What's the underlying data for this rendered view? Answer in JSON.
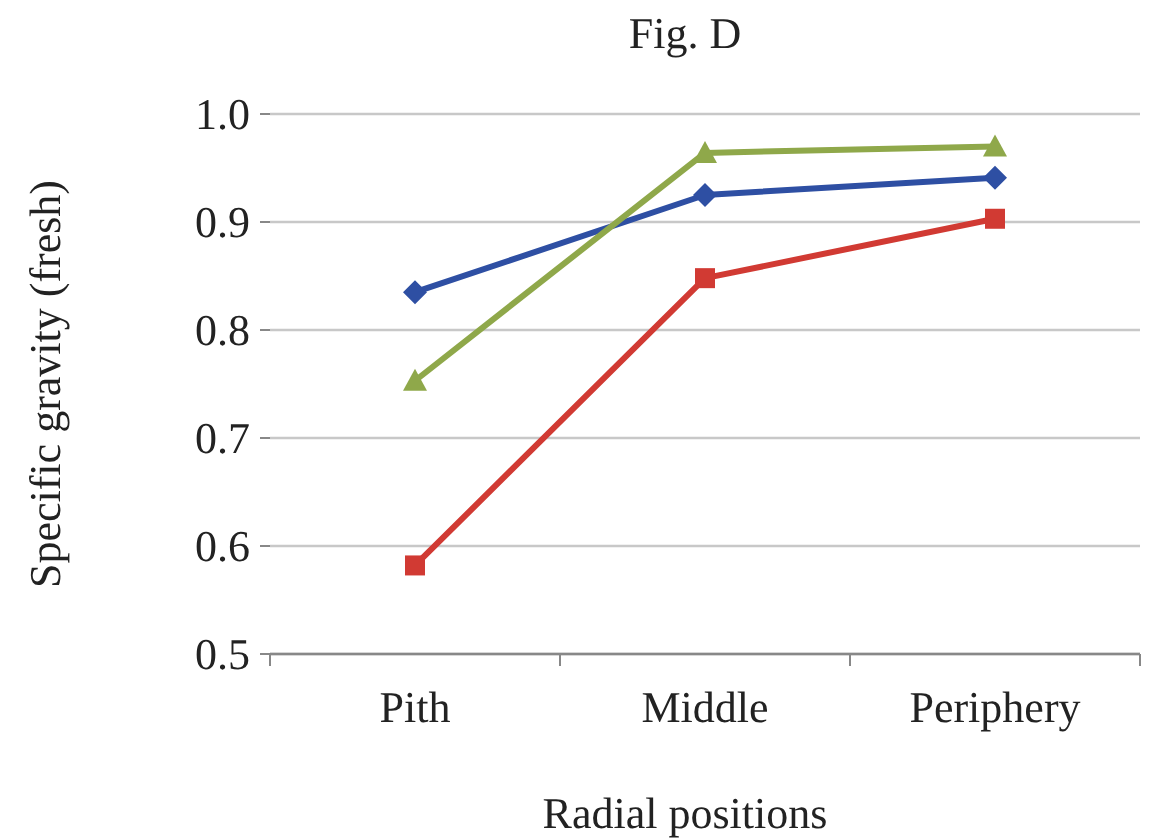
{
  "chart_data": {
    "type": "line",
    "title": "Fig. D",
    "xlabel": "Radial positions",
    "ylabel": "Specific gravity (fresh)",
    "categories": [
      "Pith",
      "Middle",
      "Periphery"
    ],
    "series": [
      {
        "color": "#2e4fa3",
        "marker": "diamond",
        "values": [
          0.835,
          0.925,
          0.941
        ]
      },
      {
        "color": "#d13a33",
        "marker": "square",
        "values": [
          0.582,
          0.848,
          0.903
        ]
      },
      {
        "color": "#8fa84a",
        "marker": "triangle",
        "values": [
          0.753,
          0.964,
          0.97
        ]
      }
    ],
    "ylim": [
      0.5,
      1.0
    ],
    "yticks": [
      {
        "value": 0.5,
        "label": "0.5"
      },
      {
        "value": 0.6,
        "label": "0.6"
      },
      {
        "value": 0.7,
        "label": "0.7"
      },
      {
        "value": 0.8,
        "label": "0.8"
      },
      {
        "value": 0.9,
        "label": "0.9"
      },
      {
        "value": 1.0,
        "label": "1.0"
      }
    ],
    "grid": "y"
  }
}
